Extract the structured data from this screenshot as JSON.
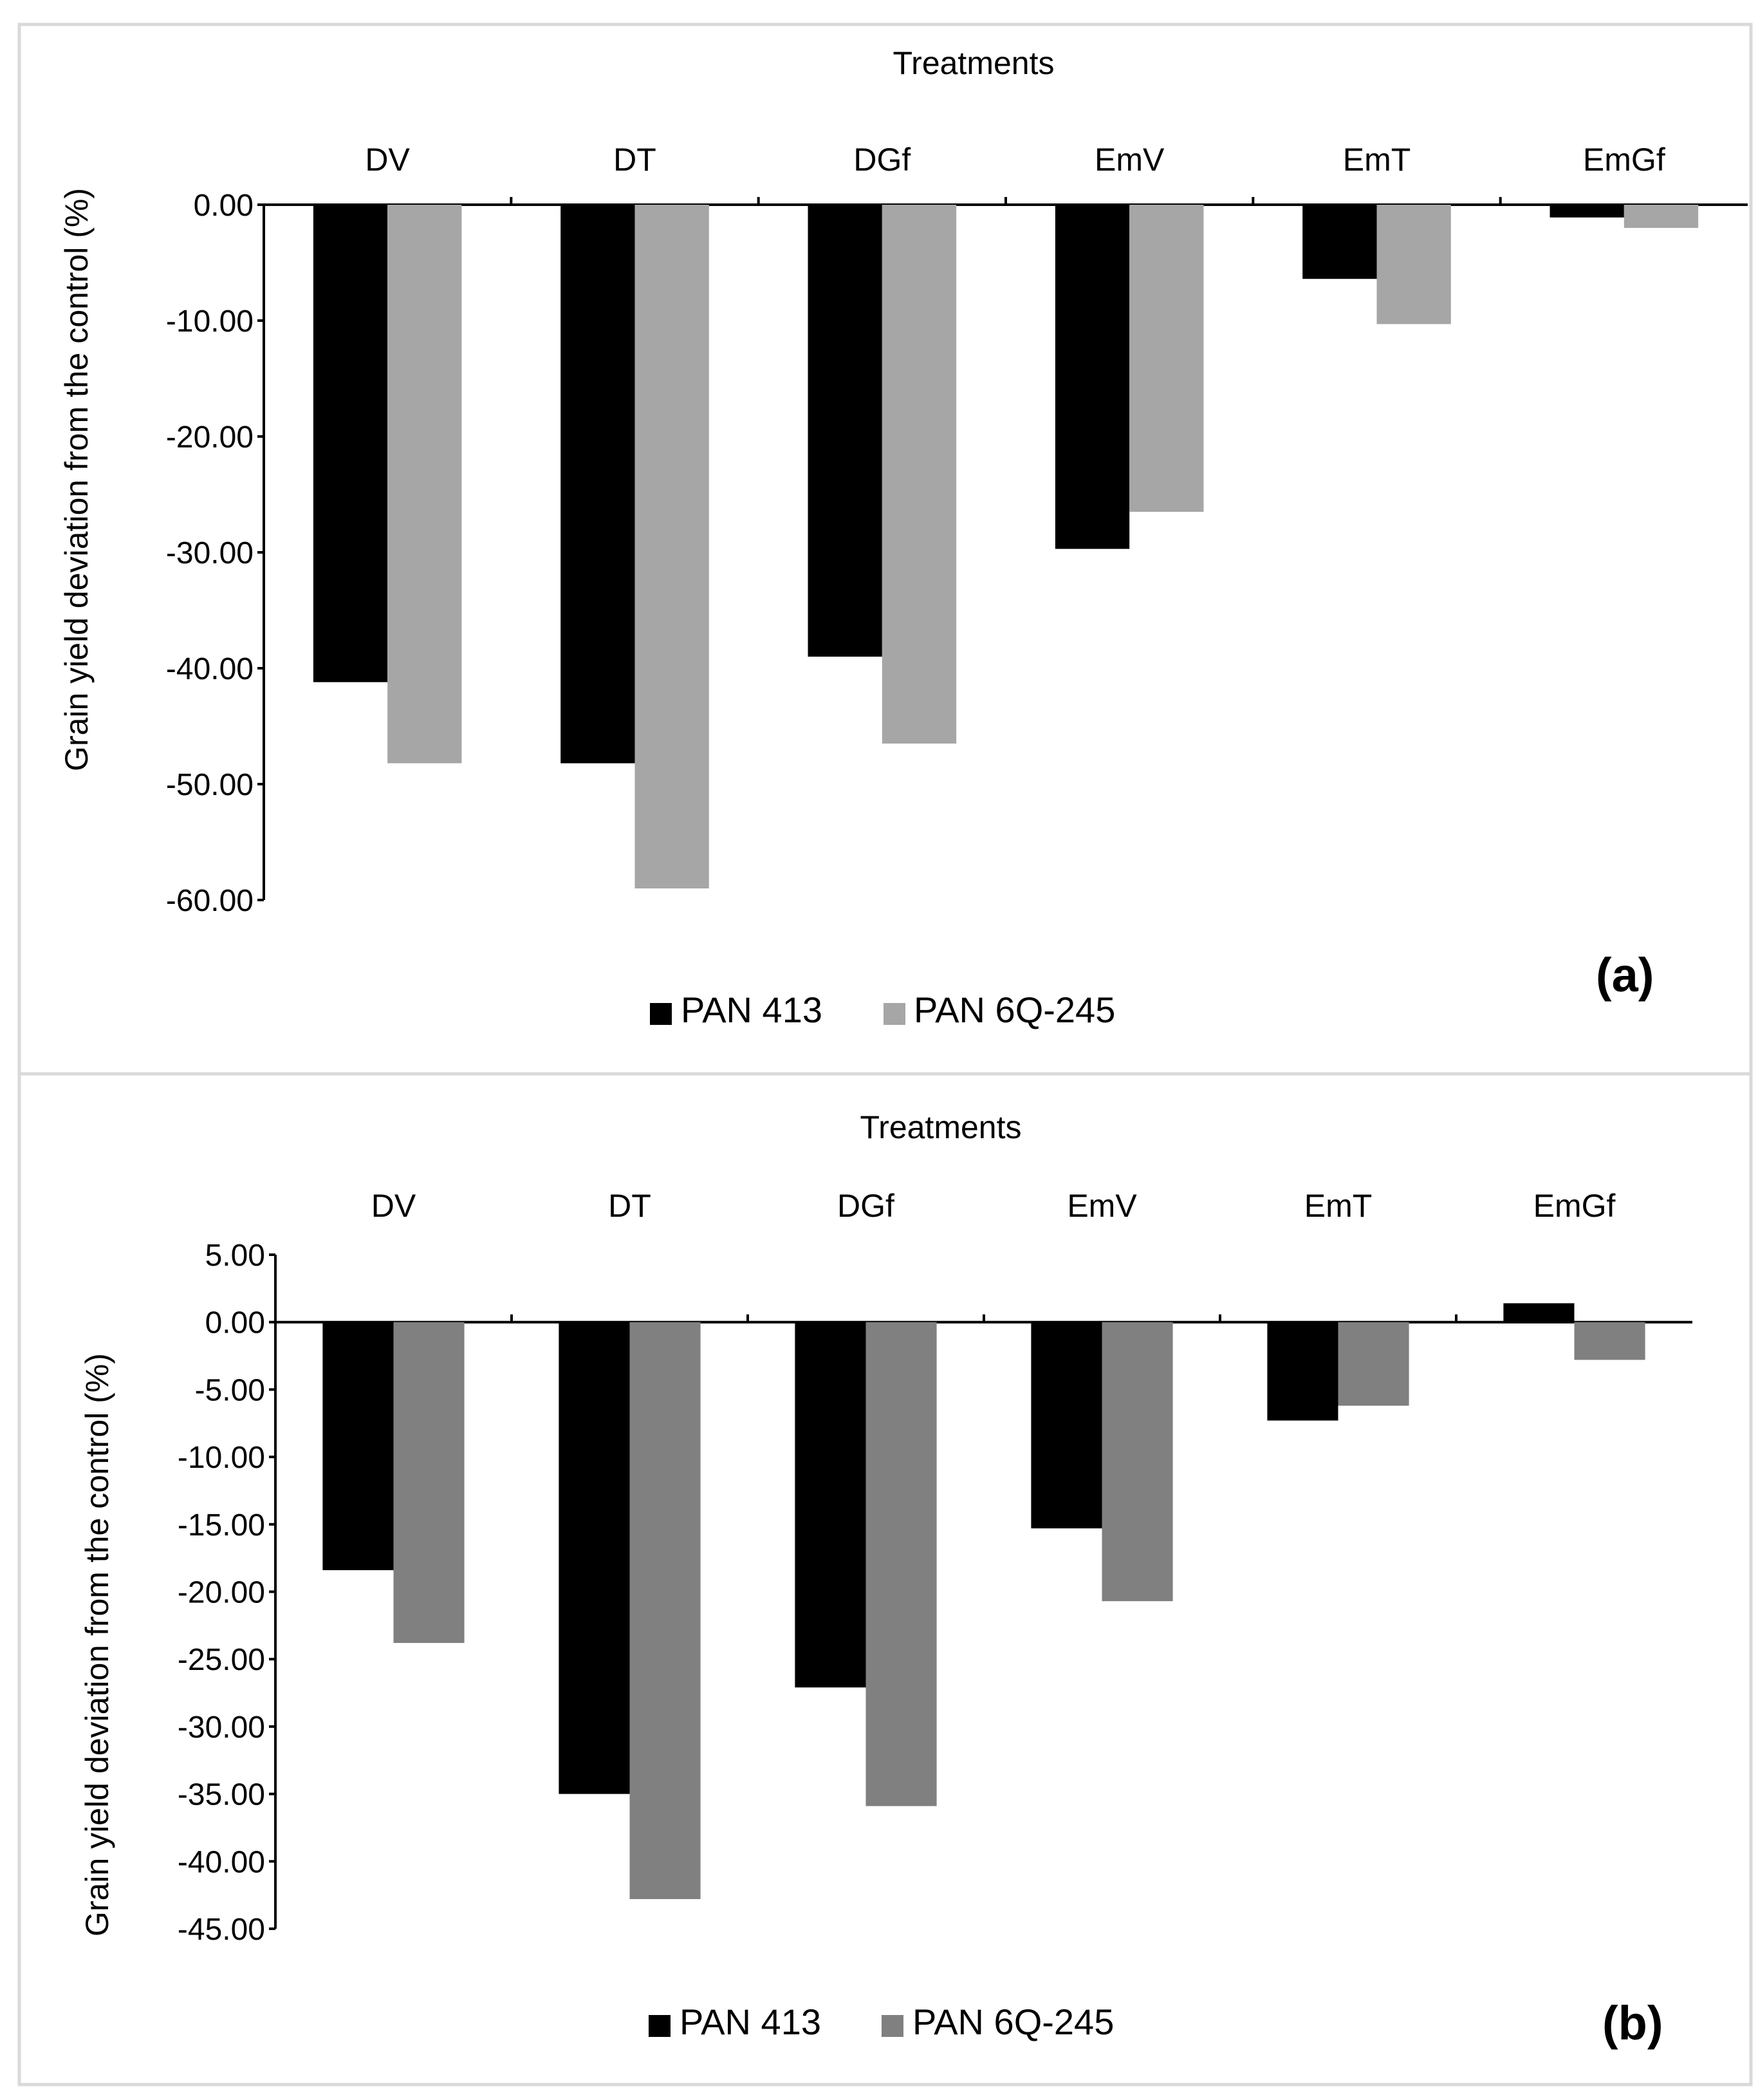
{
  "chart_data": [
    {
      "type": "bar",
      "panel_label": "(a)",
      "title": "Treatments",
      "xlabel": "Treatments",
      "ylabel": "Grain yield deviation from the control (%)",
      "categories": [
        "DV",
        "DT",
        "DGf",
        "EmV",
        "EmT",
        "EmGf"
      ],
      "ylim": [
        -60,
        0
      ],
      "yticks": [
        0,
        -10,
        -20,
        -30,
        -40,
        -50,
        -60
      ],
      "ytick_labels": [
        "0.00",
        "-10.00",
        "-20.00",
        "-30.00",
        "-40.00",
        "-50.00",
        "-60.00"
      ],
      "grid": false,
      "legend_position": "bottom-center",
      "series": [
        {
          "name": "PAN 413",
          "color": "#000000",
          "values": [
            -41.2,
            -48.2,
            -39.0,
            -29.7,
            -6.4,
            -1.1
          ]
        },
        {
          "name": "PAN 6Q-245",
          "color": "#a6a6a6",
          "values": [
            -48.2,
            -59.0,
            -46.5,
            -26.5,
            -10.3,
            -2.0
          ]
        }
      ]
    },
    {
      "type": "bar",
      "panel_label": "(b)",
      "title": "Treatments",
      "xlabel": "Treatments",
      "ylabel": "Grain yield deviation from the control (%)",
      "categories": [
        "DV",
        "DT",
        "DGf",
        "EmV",
        "EmT",
        "EmGf"
      ],
      "ylim": [
        -45,
        5
      ],
      "yticks": [
        5,
        0,
        -5,
        -10,
        -15,
        -20,
        -25,
        -30,
        -35,
        -40,
        -45
      ],
      "ytick_labels": [
        "5.00",
        "0.00",
        "-5.00",
        "-10.00",
        "-15.00",
        "-20.00",
        "-25.00",
        "-30.00",
        "-35.00",
        "-40.00",
        "-45.00"
      ],
      "grid": false,
      "legend_position": "bottom-center",
      "series": [
        {
          "name": "PAN 413",
          "color": "#000000",
          "values": [
            -18.4,
            -35.0,
            -27.1,
            -15.3,
            -7.3,
            1.4
          ]
        },
        {
          "name": "PAN 6Q-245",
          "color": "#808080",
          "values": [
            -23.8,
            -42.8,
            -35.9,
            -20.7,
            -6.2,
            -2.8
          ]
        }
      ]
    }
  ]
}
